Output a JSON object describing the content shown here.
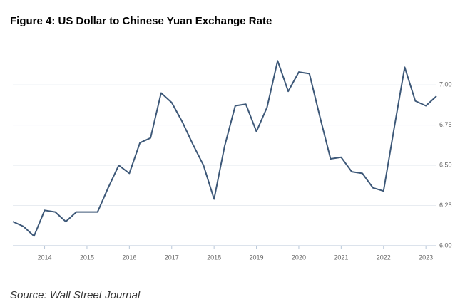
{
  "chart_data": {
    "type": "line",
    "title": "Figure 4: US Dollar to Chinese Yuan Exchange Rate",
    "source": "Source: Wall Street Journal",
    "x": [
      2013.25,
      2013.5,
      2013.75,
      2014,
      2014.25,
      2014.5,
      2014.75,
      2015,
      2015.25,
      2015.5,
      2015.75,
      2016,
      2016.25,
      2016.5,
      2016.75,
      2017,
      2017.25,
      2017.5,
      2017.75,
      2018,
      2018.25,
      2018.5,
      2018.75,
      2019,
      2019.25,
      2019.5,
      2019.75,
      2020,
      2020.25,
      2020.5,
      2020.75,
      2021,
      2021.25,
      2021.5,
      2021.75,
      2022,
      2022.25,
      2022.5,
      2022.75,
      2023,
      2023.25
    ],
    "series": [
      {
        "color": "#3d5878",
        "values": [
          6.15,
          6.12,
          6.06,
          6.22,
          6.21,
          6.15,
          6.21,
          6.21,
          6.21,
          6.36,
          6.5,
          6.45,
          6.64,
          6.67,
          6.95,
          6.89,
          6.77,
          6.63,
          6.5,
          6.29,
          6.62,
          6.87,
          6.88,
          6.71,
          6.86,
          7.15,
          6.96,
          7.08,
          7.07,
          6.8,
          6.54,
          6.55,
          6.46,
          6.45,
          6.36,
          6.34,
          6.73,
          7.11,
          6.9,
          6.87,
          6.93
        ]
      }
    ],
    "xlim": [
      2013.25,
      2023.25
    ],
    "xticks": [
      2014,
      2015,
      2016,
      2017,
      2018,
      2019,
      2020,
      2021,
      2022,
      2023
    ],
    "ylim": [
      6.0,
      7.2
    ],
    "yticks": [
      {
        "value": 6,
        "label": "6.00"
      },
      {
        "value": 6.25,
        "label": "6.25"
      },
      {
        "value": 6.5,
        "label": "6.50"
      },
      {
        "value": 6.75,
        "label": "6.75"
      },
      {
        "value": 7,
        "label": "7.00"
      }
    ],
    "grid": true
  }
}
